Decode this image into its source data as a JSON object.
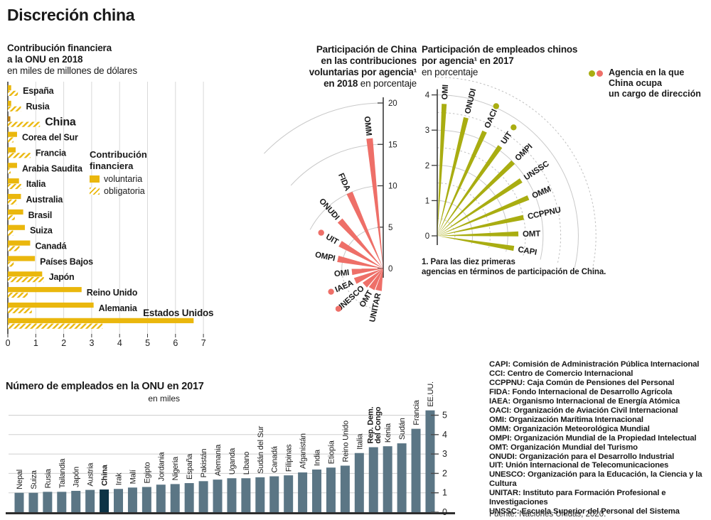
{
  "page": {
    "title": "Discreción china",
    "source": "Fuente: Naciones Unidas, 2020."
  },
  "colors": {
    "yellow": "#eab70d",
    "yellow_dark": "#bd7e0e",
    "salmon": "#ee6f68",
    "olive": "#a9ad11",
    "slate": "#5b7685",
    "navy": "#0d3345",
    "grid": "#d9d9d9",
    "axis": "#3a3a3a"
  },
  "chart_data": [
    {
      "id": "contribucion-financiera",
      "type": "bar",
      "orientation": "horizontal",
      "title_lines": [
        "Contribución financiera",
        "a la ONU en 2018"
      ],
      "subtitle": "en miles de millones de dólares",
      "legend": {
        "header_lines": [
          "Contribución",
          "financiera"
        ],
        "items": [
          {
            "label": "voluntaria",
            "swatch": "solid"
          },
          {
            "label": "obligatoria",
            "swatch": "hatch"
          }
        ]
      },
      "xlim": [
        0,
        7
      ],
      "x_ticks": [
        0,
        1,
        2,
        3,
        4,
        5,
        6,
        7
      ],
      "highlight": "China",
      "series_names": [
        "voluntaria",
        "obligatoria"
      ],
      "rows": [
        {
          "country": "España",
          "voluntaria": 0.12,
          "obligatoria": 0.36
        },
        {
          "country": "Rusia",
          "voluntaria": 0.12,
          "obligatoria": 0.47
        },
        {
          "country": "China",
          "voluntaria": 0.09,
          "obligatoria": 1.15
        },
        {
          "country": "Corea del Sur",
          "voluntaria": 0.33,
          "obligatoria": 0.2
        },
        {
          "country": "Francia",
          "voluntaria": 0.28,
          "obligatoria": 0.81
        },
        {
          "country": "Arabia Saudita",
          "voluntaria": 0.33,
          "obligatoria": 0.1
        },
        {
          "country": "Italia",
          "voluntaria": 0.4,
          "obligatoria": 0.48
        },
        {
          "country": "Australia",
          "voluntaria": 0.47,
          "obligatoria": 0.31
        },
        {
          "country": "Brasil",
          "voluntaria": 0.55,
          "obligatoria": 0.25
        },
        {
          "country": "Suiza",
          "voluntaria": 0.61,
          "obligatoria": 0.19
        },
        {
          "country": "Canadá",
          "voluntaria": 0.8,
          "obligatoria": 0.42
        },
        {
          "country": "Países Bajos",
          "voluntaria": 0.97,
          "obligatoria": 0.21
        },
        {
          "country": "Japón",
          "voluntaria": 1.23,
          "obligatoria": 1.29
        },
        {
          "country": "Reino Unido",
          "voluntaria": 2.64,
          "obligatoria": 0.71
        },
        {
          "country": "Alemania",
          "voluntaria": 3.07,
          "obligatoria": 0.86
        },
        {
          "country": "Estados Unidos",
          "voluntaria": 6.65,
          "obligatoria": 3.39,
          "label_position": "above"
        }
      ]
    },
    {
      "id": "participacion-contribuciones-voluntarias",
      "type": "radial_bar",
      "title_lines": [
        "Participación de China",
        "en las contribuciones",
        "voluntarias por agencia¹"
      ],
      "title_bold": "en 2018",
      "title_tail": "en porcentaje",
      "rlim": [
        0,
        20
      ],
      "ticks": [
        0,
        5,
        10,
        15,
        20
      ],
      "start_angle": 96,
      "step_angle": 18,
      "agencies": [
        {
          "name": "OMM",
          "value": 15.8,
          "leader": false
        },
        {
          "name": "FIDA",
          "value": 10.0,
          "leader": false
        },
        {
          "name": "ONUDI",
          "value": 7.8,
          "leader": false
        },
        {
          "name": "UIT",
          "value": 6.0,
          "leader": true
        },
        {
          "name": "OMPI",
          "value": 5.6,
          "leader": false
        },
        {
          "name": "OMI",
          "value": 3.8,
          "leader": false
        },
        {
          "name": "IAEA",
          "value": 3.7,
          "leader": true
        },
        {
          "name": "UNESCO",
          "value": 3.0,
          "leader": true
        },
        {
          "name": "OMT",
          "value": 2.8,
          "leader": false
        },
        {
          "name": "UNITAR",
          "value": 2.7,
          "leader": false
        }
      ],
      "footnote_lines": [
        "1. Para las diez primeras",
        "agencias en términos de participación de China."
      ]
    },
    {
      "id": "participacion-empleados-chinos",
      "type": "radial_bar",
      "title_lines": [
        "Participación de empleados chinos",
        "por agencia¹ en 2017"
      ],
      "title_tail": "en porcentaje",
      "rlim": [
        0,
        4
      ],
      "ticks": [
        0,
        1,
        2,
        3,
        4
      ],
      "start_angle": 87,
      "step_angle": -10.7,
      "agencies": [
        {
          "name": "OMI",
          "value": 3.75,
          "leader": false
        },
        {
          "name": "ONUDI",
          "value": 3.45,
          "leader": false
        },
        {
          "name": "OACI",
          "value": 3.25,
          "leader": true
        },
        {
          "name": "UIT",
          "value": 3.1,
          "leader": true
        },
        {
          "name": "OMPI",
          "value": 3.0,
          "leader": false
        },
        {
          "name": "UNSSC",
          "value": 2.85,
          "leader": false
        },
        {
          "name": "OMM",
          "value": 2.8,
          "leader": false
        },
        {
          "name": "CCPPNU",
          "value": 2.5,
          "leader": false
        },
        {
          "name": "OMT",
          "value": 2.3,
          "leader": false
        },
        {
          "name": "CAPI",
          "value": 2.2,
          "leader": false
        }
      ],
      "leader_legend_lines": [
        "Agencia en la que",
        "China ocupa",
        "un cargo de dirección"
      ]
    },
    {
      "id": "empleados-onu",
      "type": "bar",
      "orientation": "vertical",
      "title": "Número de empleados en la ONU en 2017",
      "subtitle": "en miles",
      "ylim": [
        0,
        5
      ],
      "y_ticks": [
        0,
        1,
        2,
        3,
        4,
        5
      ],
      "highlight": "China",
      "bars": [
        {
          "country": "Nepal",
          "value": 1.0
        },
        {
          "country": "Suiza",
          "value": 1.0
        },
        {
          "country": "Rusia",
          "value": 1.05
        },
        {
          "country": "Tailandia",
          "value": 1.05
        },
        {
          "country": "Japón",
          "value": 1.1
        },
        {
          "country": "Austria",
          "value": 1.15
        },
        {
          "country": "China",
          "value": 1.17
        },
        {
          "country": "Irak",
          "value": 1.2
        },
        {
          "country": "Malí",
          "value": 1.27
        },
        {
          "country": "Egipto",
          "value": 1.3
        },
        {
          "country": "Jordania",
          "value": 1.42
        },
        {
          "country": "Nigeria",
          "value": 1.45
        },
        {
          "country": "España",
          "value": 1.5
        },
        {
          "country": "Pakistán",
          "value": 1.6
        },
        {
          "country": "Alemania",
          "value": 1.68
        },
        {
          "country": "Uganda",
          "value": 1.75
        },
        {
          "country": "Líbano",
          "value": 1.75
        },
        {
          "country": "Sudán del Sur",
          "value": 1.8
        },
        {
          "country": "Canadá",
          "value": 1.85
        },
        {
          "country": "Filipinas",
          "value": 1.9
        },
        {
          "country": "Afganistán",
          "value": 2.05
        },
        {
          "country": "India",
          "value": 2.2
        },
        {
          "country": "Etiopía",
          "value": 2.3
        },
        {
          "country": "Reino Unido",
          "value": 2.4
        },
        {
          "country": "Italia",
          "value": 3.05
        },
        {
          "country": [
            "Rep. Dem.",
            "del Congo"
          ],
          "value": 3.35
        },
        {
          "country": "Kenia",
          "value": 3.4
        },
        {
          "country": "Sudán",
          "value": 3.55
        },
        {
          "country": "Francia",
          "value": 4.3
        },
        {
          "country": "EE.UU.",
          "value": 5.25
        }
      ]
    }
  ],
  "glossary": {
    "entries": [
      [
        "CAPI",
        "Comisión de Administración Pública Internacional"
      ],
      [
        "CCI",
        "Centro de Comercio Internacional"
      ],
      [
        "CCPPNU",
        "Caja Común de Pensiones del Personal"
      ],
      [
        "FIDA",
        "Fondo Internacional de Desarrollo Agrícola"
      ],
      [
        "IAEA",
        "Organismo Internacional de Energía Atómica"
      ],
      [
        "OACI",
        "Organización de Aviación Civil Internacional"
      ],
      [
        "OMI",
        "Organización Marítima Internacional"
      ],
      [
        "OMM",
        "Organización Meteorológica Mundial"
      ],
      [
        "OMPI",
        "Organización Mundial de la Propiedad Intelectual"
      ],
      [
        "OMT",
        "Organización Mundial del Turismo"
      ],
      [
        "ONUDI",
        "Organización para el Desarrollo Industrial"
      ],
      [
        "UIT",
        "Unión Internacional de Telecomunicaciones"
      ],
      [
        "UNESCO",
        "Organización para la Educación, la Ciencia y la Cultura"
      ],
      [
        "UNITAR",
        "Instituto para Formación Profesional e Investigaciones"
      ],
      [
        "UNSSC",
        "Escuela Superior del Personal del Sistema"
      ]
    ]
  }
}
